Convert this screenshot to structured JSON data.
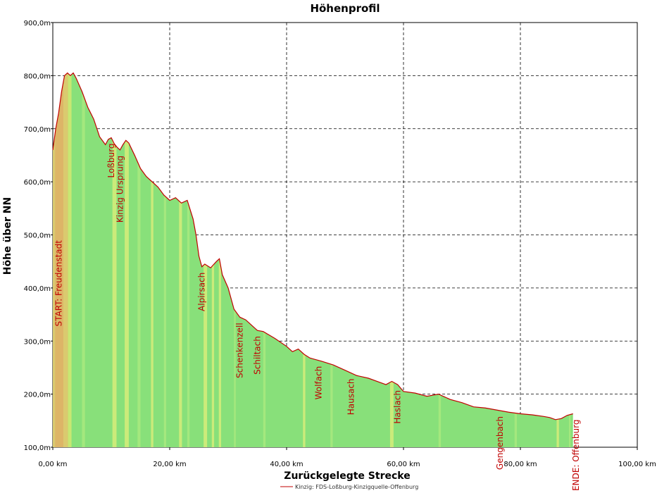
{
  "chart_data": {
    "type": "area",
    "title": "Höhenprofil",
    "xlabel": "Zurückgelegte Strecke",
    "ylabel": "Höhe über NN",
    "xlim": [
      0,
      100
    ],
    "ylim": [
      100,
      900
    ],
    "x_ticks": [
      0,
      20,
      40,
      60,
      80,
      100
    ],
    "x_tick_labels": [
      "0,00 km",
      "20,00 km",
      "40,00 km",
      "60,00 km",
      "80,00 km",
      "100,00 km"
    ],
    "y_ticks": [
      100,
      200,
      300,
      400,
      500,
      600,
      700,
      800,
      900
    ],
    "y_tick_labels": [
      "100,0m",
      "200,0m",
      "300,0m",
      "400,0m",
      "500,0m",
      "600,0m",
      "700,0m",
      "800,0m",
      "900,0m"
    ],
    "grid": true,
    "legend": "bottom-center",
    "series": [
      {
        "name": "Kinzig: FDS-Loßburg-Kinzigquelle-Offenburg",
        "color": "#c00000",
        "fill": "#88e07a",
        "x": [
          0,
          0.5,
          1,
          1.5,
          2,
          2.5,
          3,
          3.5,
          4,
          5,
          6,
          7,
          8,
          9,
          9.5,
          10,
          10.5,
          11,
          11.5,
          12,
          12.5,
          13,
          14,
          15,
          16,
          17,
          18,
          19,
          20,
          21,
          22,
          23,
          24,
          24.5,
          25,
          25.5,
          26,
          27,
          28,
          28.5,
          29,
          30,
          31,
          32,
          33,
          34,
          35,
          36,
          38,
          40,
          41,
          42,
          42.5,
          43,
          44,
          46,
          48,
          50,
          52,
          54,
          56,
          57,
          58,
          59,
          60,
          62,
          64,
          66,
          67,
          68,
          70,
          72,
          74,
          76,
          78,
          80,
          82,
          84,
          85,
          86,
          87,
          88,
          89
        ],
        "y": [
          660,
          700,
          730,
          770,
          800,
          805,
          800,
          805,
          795,
          770,
          740,
          718,
          685,
          670,
          680,
          683,
          672,
          665,
          660,
          670,
          678,
          673,
          650,
          625,
          610,
          600,
          590,
          575,
          565,
          570,
          560,
          565,
          530,
          500,
          460,
          440,
          445,
          438,
          450,
          455,
          425,
          400,
          360,
          345,
          340,
          330,
          320,
          318,
          305,
          290,
          280,
          285,
          280,
          275,
          268,
          262,
          255,
          245,
          235,
          230,
          222,
          218,
          224,
          218,
          205,
          202,
          196,
          200,
          195,
          190,
          184,
          176,
          174,
          170,
          166,
          163,
          161,
          158,
          156,
          152,
          154,
          160,
          163
        ]
      }
    ],
    "annotations": [
      {
        "text": "START: Freudenstadt",
        "x": 1
      },
      {
        "text": "Loßburg",
        "x": 10
      },
      {
        "text": "Kinzig Ursprung",
        "x": 11.5
      },
      {
        "text": "Alpirsach",
        "x": 25.5
      },
      {
        "text": "Schenkenzell",
        "x": 32
      },
      {
        "text": "Schiltach",
        "x": 35
      },
      {
        "text": "Wolfach",
        "x": 45.5
      },
      {
        "text": "Hausach",
        "x": 51
      },
      {
        "text": "Haslach",
        "x": 59
      },
      {
        "text": "Gengenbach",
        "x": 76.5
      },
      {
        "text": "ENDE: Offenburg",
        "x": 89.5
      }
    ]
  }
}
